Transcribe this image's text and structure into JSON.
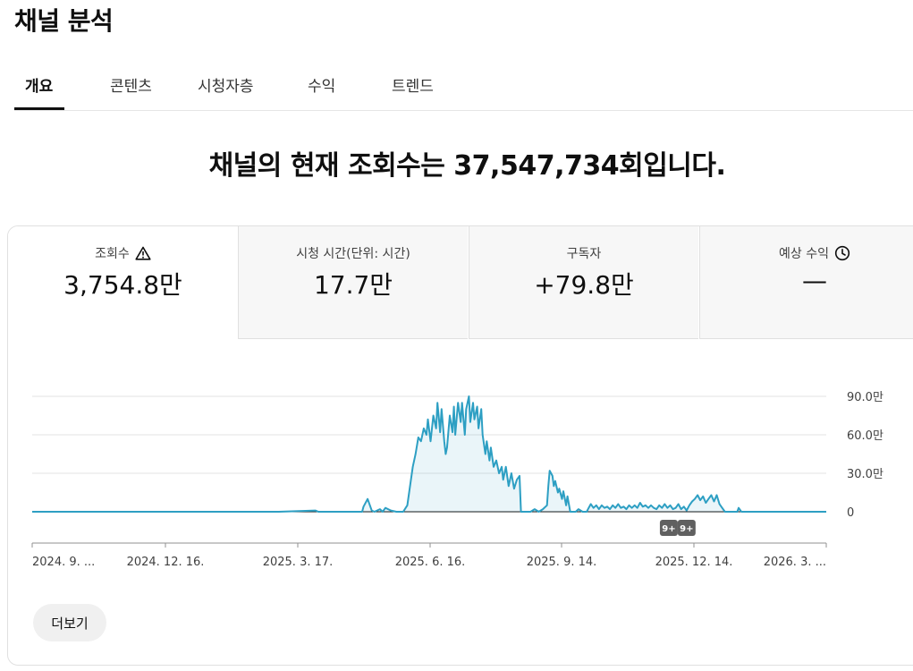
{
  "page": {
    "title": "채널 분석"
  },
  "tabs": [
    {
      "label": "개요",
      "active": true
    },
    {
      "label": "콘텐츠"
    },
    {
      "label": "시청자층"
    },
    {
      "label": "수익"
    },
    {
      "label": "트렌드"
    }
  ],
  "headline": "채널의 현재 조회수는 37,547,734회입니다.",
  "metrics": [
    {
      "label": "조회수",
      "value": "3,754.8만",
      "icon": "warning-triangle-icon"
    },
    {
      "label": "시청 시간(단위: 시간)",
      "value": "17.7만"
    },
    {
      "label": "구독자",
      "value": "+79.8만"
    },
    {
      "label": "예상 수익",
      "value": "—",
      "icon": "clock-icon"
    }
  ],
  "chart_data": {
    "type": "area",
    "series": [
      {
        "color": "#2d9fc3",
        "points": [
          [
            0,
            0
          ],
          [
            120,
            0
          ],
          [
            180,
            0
          ],
          [
            207,
            1
          ],
          [
            209,
            0
          ],
          [
            218,
            0
          ],
          [
            228,
            0
          ],
          [
            241,
            0
          ],
          [
            242,
            4
          ],
          [
            245,
            10
          ],
          [
            248,
            1
          ],
          [
            250,
            0
          ],
          [
            254,
            2
          ],
          [
            256,
            0
          ],
          [
            258,
            3
          ],
          [
            262,
            1
          ],
          [
            266,
            0
          ],
          [
            271,
            0
          ],
          [
            274,
            5
          ],
          [
            278,
            35
          ],
          [
            280,
            45
          ],
          [
            282,
            58
          ],
          [
            284,
            55
          ],
          [
            286,
            65
          ],
          [
            288,
            60
          ],
          [
            289,
            72
          ],
          [
            291,
            55
          ],
          [
            293,
            75
          ],
          [
            295,
            65
          ],
          [
            296,
            85
          ],
          [
            298,
            62
          ],
          [
            299,
            80
          ],
          [
            301,
            55
          ],
          [
            302,
            45
          ],
          [
            303,
            50
          ],
          [
            305,
            75
          ],
          [
            307,
            62
          ],
          [
            308,
            82
          ],
          [
            309,
            60
          ],
          [
            311,
            85
          ],
          [
            313,
            70
          ],
          [
            314,
            85
          ],
          [
            316,
            60
          ],
          [
            317,
            80
          ],
          [
            319,
            90
          ],
          [
            320,
            70
          ],
          [
            322,
            85
          ],
          [
            323,
            72
          ],
          [
            325,
            82
          ],
          [
            326,
            65
          ],
          [
            328,
            80
          ],
          [
            329,
            60
          ],
          [
            331,
            45
          ],
          [
            332,
            55
          ],
          [
            334,
            40
          ],
          [
            335,
            50
          ],
          [
            337,
            35
          ],
          [
            339,
            40
          ],
          [
            341,
            30
          ],
          [
            343,
            35
          ],
          [
            344,
            25
          ],
          [
            346,
            35
          ],
          [
            348,
            20
          ],
          [
            350,
            30
          ],
          [
            352,
            18
          ],
          [
            354,
            25
          ],
          [
            356,
            28
          ],
          [
            357,
            0
          ],
          [
            364,
            0
          ],
          [
            367,
            2
          ],
          [
            370,
            0
          ],
          [
            373,
            2
          ],
          [
            376,
            5
          ],
          [
            377,
            20
          ],
          [
            378,
            32
          ],
          [
            380,
            28
          ],
          [
            381,
            20
          ],
          [
            382,
            24
          ],
          [
            384,
            15
          ],
          [
            385,
            18
          ],
          [
            387,
            10
          ],
          [
            388,
            16
          ],
          [
            390,
            5
          ],
          [
            391,
            12
          ],
          [
            393,
            0
          ],
          [
            397,
            0
          ],
          [
            399,
            2
          ],
          [
            402,
            0
          ],
          [
            405,
            0
          ],
          [
            406,
            2
          ],
          [
            408,
            6
          ],
          [
            410,
            3
          ],
          [
            412,
            5
          ],
          [
            414,
            2
          ],
          [
            416,
            5
          ],
          [
            418,
            3
          ],
          [
            420,
            4
          ],
          [
            422,
            2
          ],
          [
            424,
            5
          ],
          [
            426,
            3
          ],
          [
            428,
            6
          ],
          [
            430,
            3
          ],
          [
            432,
            4
          ],
          [
            434,
            2
          ],
          [
            436,
            5
          ],
          [
            438,
            3
          ],
          [
            440,
            5
          ],
          [
            442,
            3
          ],
          [
            444,
            7
          ],
          [
            446,
            4
          ],
          [
            448,
            5
          ],
          [
            450,
            3
          ],
          [
            452,
            5
          ],
          [
            454,
            3
          ],
          [
            456,
            2
          ],
          [
            458,
            5
          ],
          [
            460,
            3
          ],
          [
            462,
            6
          ],
          [
            464,
            3
          ],
          [
            466,
            5
          ],
          [
            468,
            2
          ],
          [
            470,
            3
          ],
          [
            472,
            6
          ],
          [
            474,
            2
          ],
          [
            476,
            4
          ],
          [
            478,
            1
          ],
          [
            480,
            5
          ],
          [
            482,
            8
          ],
          [
            484,
            10
          ],
          [
            486,
            13
          ],
          [
            488,
            9
          ],
          [
            490,
            12
          ],
          [
            492,
            7
          ],
          [
            494,
            10
          ],
          [
            496,
            13
          ],
          [
            498,
            8
          ],
          [
            500,
            13
          ],
          [
            502,
            6
          ],
          [
            504,
            3
          ],
          [
            506,
            0
          ],
          [
            509,
            0
          ],
          [
            512,
            0
          ],
          [
            515,
            0
          ],
          [
            516,
            3
          ],
          [
            518,
            0
          ],
          [
            580,
            0
          ]
        ]
      }
    ],
    "ylim": [
      0,
      90
    ],
    "yticks": [
      "90.0만",
      "60.0만",
      "30.0만",
      "0"
    ],
    "xticks": [
      "2024. 9. ...",
      "2024. 12. 16.",
      "2025. 3. 17.",
      "2025. 6. 16.",
      "2025. 9. 14.",
      "2025. 12. 14.",
      "2026. 3. ..."
    ],
    "markers": [
      {
        "label": "9+",
        "x": 465
      },
      {
        "label": "9+",
        "x": 478
      }
    ],
    "grid": true
  },
  "more_button": {
    "label": "더보기"
  }
}
